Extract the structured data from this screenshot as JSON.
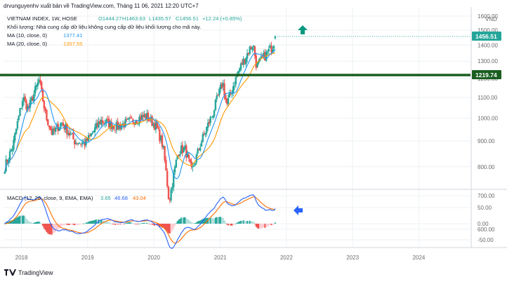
{
  "header": {
    "caption": "drvunguyenhv xuất bản về TradingView.com, Tháng 11 06, 2021 12:20 UTC+7",
    "symbol_line": "VIETNAM INDEX, 1W, HOSE",
    "open": "O1444.27",
    "high": "H1463.63",
    "low": "L1435.57",
    "close": "C1456.51",
    "change": "+12.24 (+0.85%)",
    "volume_note": "Khối lượng: Nhà cung cấp dữ liệu không cung cấp dữ liệu khối lượng cho mã này.",
    "ma10_label": "MA (10, close, 0)",
    "ma10_value": "1377.41",
    "ma20_label": "MA (20, close, 0)",
    "ma20_value": "1357.55"
  },
  "macd_header": {
    "label": "MACD (12, 26, close, 9, EMA, EMA)",
    "hist": "3.65",
    "macd": "46.68",
    "signal": "43.04"
  },
  "footer": {
    "brand": "TradingView"
  },
  "colors": {
    "up": "#26a69a",
    "down": "#ef5350",
    "ma10": "#2196f3",
    "ma20": "#ff9800",
    "macd": "#2962ff",
    "signal": "#ff6d00",
    "support": "#1b5e20",
    "text": "#131722",
    "axis": "#6b6b6b",
    "grid": "#eef0f3"
  },
  "chart_data": [
    {
      "type": "candlestick",
      "title": "VIETNAM INDEX, 1W, HOSE",
      "ylabel": "VND",
      "y_axis_scale": "log",
      "y_ticks": [
        600,
        700,
        800,
        900,
        1000,
        1100,
        1200,
        1300,
        1400,
        1500,
        1600
      ],
      "x_ticks": [
        "2018",
        "2019",
        "2020",
        "2021",
        "2022",
        "2023",
        "2024"
      ],
      "last_price": "1456.51",
      "support_level": "1219.74",
      "annotations": [
        "up-arrow"
      ],
      "anchors": [
        {
          "date": "2017-10-01",
          "price": 800
        },
        {
          "date": "2017-11-15",
          "price": 880
        },
        {
          "date": "2018-01-10",
          "price": 1100
        },
        {
          "date": "2018-02-08",
          "price": 1040
        },
        {
          "date": "2018-04-08",
          "price": 1190
        },
        {
          "date": "2018-05-15",
          "price": 1010
        },
        {
          "date": "2018-06-20",
          "price": 930
        },
        {
          "date": "2018-08-10",
          "price": 980
        },
        {
          "date": "2018-10-20",
          "price": 900
        },
        {
          "date": "2018-12-20",
          "price": 890
        },
        {
          "date": "2019-03-15",
          "price": 990
        },
        {
          "date": "2019-06-10",
          "price": 960
        },
        {
          "date": "2019-09-20",
          "price": 995
        },
        {
          "date": "2019-11-20",
          "price": 1010
        },
        {
          "date": "2020-01-15",
          "price": 960
        },
        {
          "date": "2020-02-20",
          "price": 880
        },
        {
          "date": "2020-03-25",
          "price": 680
        },
        {
          "date": "2020-05-15",
          "price": 860
        },
        {
          "date": "2020-06-20",
          "price": 870
        },
        {
          "date": "2020-07-28",
          "price": 780
        },
        {
          "date": "2020-09-20",
          "price": 900
        },
        {
          "date": "2020-11-20",
          "price": 1020
        },
        {
          "date": "2021-01-15",
          "price": 1180
        },
        {
          "date": "2021-02-05",
          "price": 1060
        },
        {
          "date": "2021-04-15",
          "price": 1250
        },
        {
          "date": "2021-06-10",
          "price": 1370
        },
        {
          "date": "2021-07-01",
          "price": 1410
        },
        {
          "date": "2021-07-20",
          "price": 1270
        },
        {
          "date": "2021-09-10",
          "price": 1340
        },
        {
          "date": "2021-10-15",
          "price": 1390
        },
        {
          "date": "2021-11-05",
          "price": 1456.51
        }
      ]
    },
    {
      "type": "line",
      "title": "MACD (12, 26, close, 9, EMA, EMA)",
      "y_ticks": [
        -50,
        0,
        50
      ],
      "series_names": [
        "MACD",
        "Signal",
        "Histogram"
      ],
      "last_values": {
        "histogram": 3.65,
        "macd": 46.68,
        "signal": 43.04
      },
      "annotations": [
        "left-arrow"
      ]
    }
  ]
}
